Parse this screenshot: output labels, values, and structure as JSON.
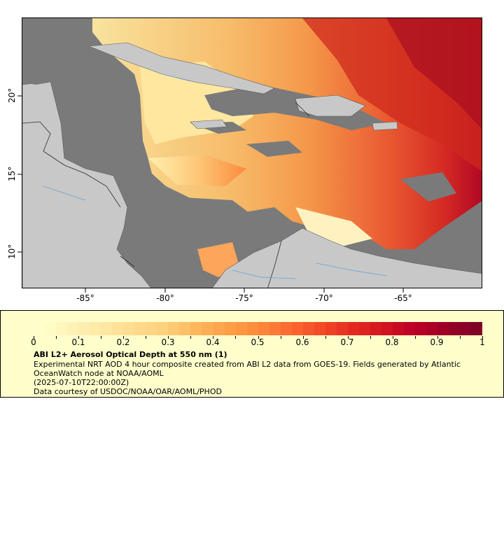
{
  "map": {
    "lon_ticks": [
      "-85°",
      "-80°",
      "-75°",
      "-70°",
      "-65°"
    ],
    "lat_ticks": [
      "20°",
      "15°",
      "10°"
    ],
    "colors": {
      "ocean_nodata": "#7a7a7a",
      "land": "#c8c8c8",
      "borders": "#3a3a3a",
      "rivers": "#6aa0d8"
    }
  },
  "legend": {
    "colorbar_ticks": [
      "0",
      "0.1",
      "0.2",
      "0.3",
      "0.4",
      "0.5",
      "0.6",
      "0.7",
      "0.8",
      "0.9",
      "1"
    ],
    "title": "ABI L2+ Aerosol Optical Depth at 550 nm (1)",
    "line1": "Experimental NRT AOD 4 hour composite created from ABI L2 data from GOES-19. Fields generated by Atlantic OceanWatch node at NOAA/AOML",
    "line2": "(2025-07-10T22:00:00Z)",
    "line3": "Data courtesy of USDOC/NOAA/OAR/AOML/PHOD",
    "colors": [
      "#ffffcc",
      "#fff3b8",
      "#ffe8a4",
      "#fedc90",
      "#fed07c",
      "#feb85e",
      "#fea048",
      "#fd8a3c",
      "#fc6a30",
      "#f34a28",
      "#e52b20",
      "#d31520",
      "#bd0026",
      "#9b0026",
      "#800026"
    ]
  },
  "chart_data": {
    "type": "heatmap",
    "variable": "ABI L2+ Aerosol Optical Depth at 550 nm (1)",
    "colorbar_range": [
      0,
      1
    ],
    "lon_ticks": [
      -85,
      -80,
      -75,
      -70,
      -65
    ],
    "lat_ticks": [
      20,
      15,
      10
    ]
  }
}
